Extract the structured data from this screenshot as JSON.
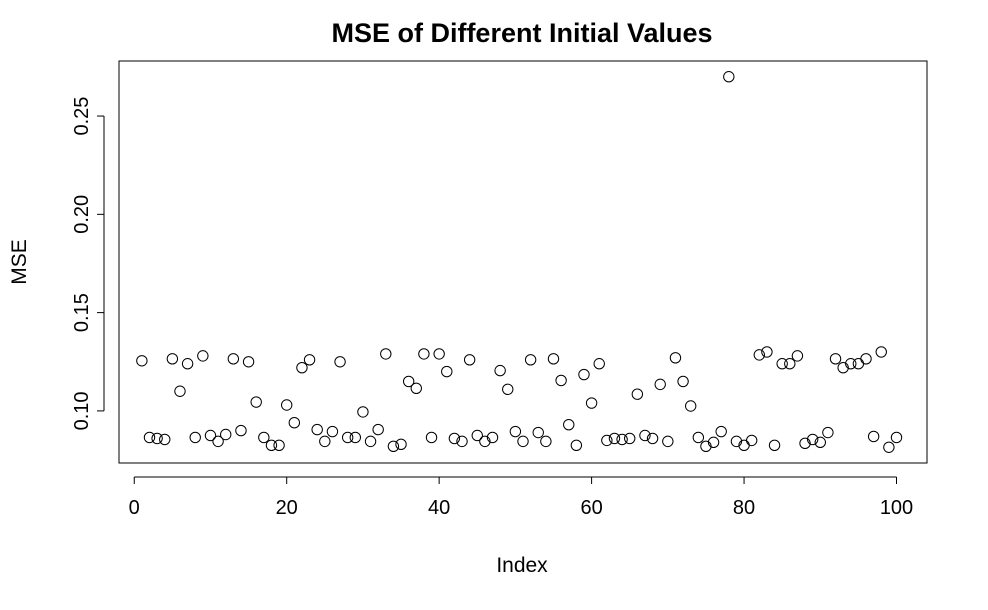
{
  "chart_data": {
    "type": "scatter",
    "title": "MSE of Different Initial Values",
    "xlabel": "Index",
    "ylabel": "MSE",
    "xlim": [
      -2,
      104
    ],
    "ylim": [
      0.0735,
      0.278
    ],
    "xticks": [
      0,
      20,
      40,
      60,
      80,
      100
    ],
    "yticks": [
      0.1,
      0.15,
      0.2,
      0.25
    ],
    "xtick_labels": [
      "0",
      "20",
      "40",
      "60",
      "80",
      "100"
    ],
    "ytick_labels": [
      "0.10",
      "0.15",
      "0.20",
      "0.25"
    ],
    "grid": false,
    "marker": "open-circle",
    "x": [
      1,
      2,
      3,
      4,
      5,
      6,
      7,
      8,
      9,
      10,
      11,
      12,
      13,
      14,
      15,
      16,
      17,
      18,
      19,
      20,
      21,
      22,
      23,
      24,
      25,
      26,
      27,
      28,
      29,
      30,
      31,
      32,
      33,
      34,
      35,
      36,
      37,
      38,
      39,
      40,
      41,
      42,
      43,
      44,
      45,
      46,
      47,
      48,
      49,
      50,
      51,
      52,
      53,
      54,
      55,
      56,
      57,
      58,
      59,
      60,
      61,
      62,
      63,
      64,
      65,
      66,
      67,
      68,
      69,
      70,
      71,
      72,
      73,
      74,
      75,
      76,
      77,
      78,
      79,
      80,
      81,
      82,
      83,
      84,
      85,
      86,
      87,
      88,
      89,
      90,
      91,
      92,
      93,
      94,
      95,
      96,
      97,
      98,
      99,
      100
    ],
    "y": [
      0.1255,
      0.0865,
      0.086,
      0.0855,
      0.1265,
      0.11,
      0.124,
      0.0865,
      0.128,
      0.0875,
      0.0845,
      0.088,
      0.1265,
      0.09,
      0.125,
      0.1045,
      0.0865,
      0.0825,
      0.0825,
      0.103,
      0.094,
      0.122,
      0.126,
      0.0905,
      0.0845,
      0.0895,
      0.125,
      0.0865,
      0.0865,
      0.0995,
      0.0845,
      0.0905,
      0.129,
      0.082,
      0.083,
      0.115,
      0.1115,
      0.129,
      0.0865,
      0.129,
      0.12,
      0.086,
      0.0845,
      0.126,
      0.0875,
      0.0845,
      0.0865,
      0.1205,
      0.111,
      0.0895,
      0.0845,
      0.126,
      0.089,
      0.0845,
      0.1265,
      0.1155,
      0.093,
      0.0825,
      0.1185,
      0.104,
      0.124,
      0.085,
      0.086,
      0.0855,
      0.086,
      0.1085,
      0.0875,
      0.086,
      0.1135,
      0.0845,
      0.127,
      0.115,
      0.1025,
      0.0865,
      0.082,
      0.084,
      0.0895,
      0.27,
      0.0845,
      0.0825,
      0.085,
      0.1285,
      0.13,
      0.0825,
      0.124,
      0.124,
      0.128,
      0.0835,
      0.0855,
      0.084,
      0.089,
      0.1265,
      0.122,
      0.124,
      0.124,
      0.1265,
      0.087,
      0.13,
      0.0815,
      0.0865
    ]
  }
}
